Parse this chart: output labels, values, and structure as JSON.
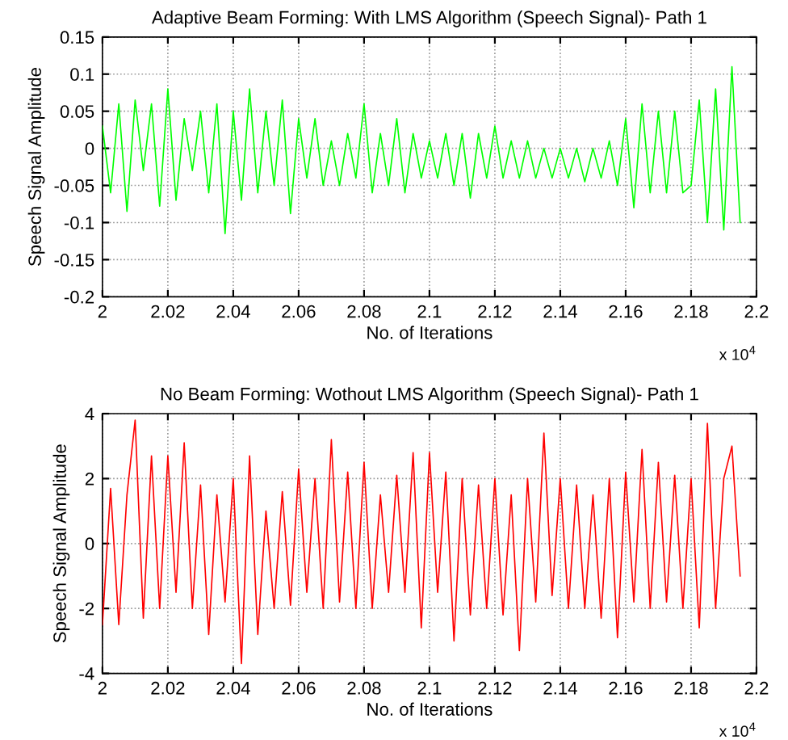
{
  "chart_data": [
    {
      "type": "line",
      "title": "Adaptive Beam Forming: With LMS Algorithm (Speech Signal)- Path 1",
      "xlabel": "No. of Iterations",
      "ylabel": "Speech Signal Amplitude",
      "annotations": [
        "x 10$^{4}$"
      ],
      "x": [
        2.0,
        2.0025,
        2.005,
        2.0075,
        2.01,
        2.0125,
        2.015,
        2.0175,
        2.02,
        2.0225,
        2.025,
        2.0275,
        2.03,
        2.0325,
        2.035,
        2.0375,
        2.04,
        2.0425,
        2.045,
        2.0475,
        2.05,
        2.0525,
        2.055,
        2.0575,
        2.06,
        2.0625,
        2.065,
        2.0675,
        2.07,
        2.0725,
        2.075,
        2.0775,
        2.08,
        2.0825,
        2.085,
        2.0875,
        2.09,
        2.0925,
        2.095,
        2.0975,
        2.1,
        2.1025,
        2.105,
        2.1075,
        2.11,
        2.1125,
        2.115,
        2.1175,
        2.12,
        2.1225,
        2.125,
        2.1275,
        2.13,
        2.1325,
        2.135,
        2.1375,
        2.14,
        2.1425,
        2.145,
        2.1475,
        2.15,
        2.1525,
        2.155,
        2.1575,
        2.16,
        2.1625,
        2.165,
        2.1675,
        2.17,
        2.1725,
        2.175,
        2.1775,
        2.18,
        2.1825,
        2.185,
        2.1875,
        2.19,
        2.1925,
        2.195
      ],
      "series": [
        {
          "color": "#00ff00",
          "values": [
            0.03,
            -0.06,
            0.06,
            -0.085,
            0.065,
            -0.03,
            0.06,
            -0.078,
            0.08,
            -0.07,
            0.04,
            -0.03,
            0.05,
            -0.06,
            0.06,
            -0.115,
            0.05,
            -0.07,
            0.08,
            -0.06,
            0.05,
            -0.05,
            0.065,
            -0.088,
            0.04,
            -0.04,
            0.04,
            -0.05,
            0.01,
            -0.05,
            0.02,
            -0.04,
            0.06,
            -0.06,
            0.02,
            -0.05,
            0.04,
            -0.06,
            0.02,
            -0.04,
            0.01,
            -0.04,
            0.02,
            -0.05,
            0.02,
            -0.067,
            0.02,
            -0.04,
            0.03,
            -0.04,
            0.01,
            -0.04,
            0.01,
            -0.04,
            0.0,
            -0.04,
            0.0,
            -0.04,
            0.0,
            -0.045,
            0.0,
            -0.04,
            0.01,
            -0.05,
            0.04,
            -0.08,
            0.06,
            -0.06,
            0.05,
            -0.06,
            0.05,
            -0.06,
            -0.05,
            0.065,
            -0.1,
            0.08,
            -0.11,
            0.11,
            -0.1
          ]
        }
      ],
      "xlim": [
        2,
        2.2
      ],
      "xticks": [
        2,
        2.02,
        2.04,
        2.06,
        2.08,
        2.1,
        2.12,
        2.14,
        2.16,
        2.18,
        2.2
      ],
      "ylim": [
        -0.2,
        0.15
      ],
      "yticks": [
        -0.2,
        -0.15,
        -0.1,
        -0.05,
        0,
        0.05,
        0.1,
        0.15
      ],
      "grid": true,
      "line_style": "solid"
    },
    {
      "type": "line",
      "title": "No Beam Forming: Wothout LMS Algorithm (Speech Signal)- Path 1",
      "xlabel": "No. of Iterations",
      "ylabel": "Speech Signal Amplitude",
      "annotations": [
        "x 10$^{4}$"
      ],
      "x": [
        2.0,
        2.0025,
        2.005,
        2.0075,
        2.01,
        2.0125,
        2.015,
        2.0175,
        2.02,
        2.0225,
        2.025,
        2.0275,
        2.03,
        2.0325,
        2.035,
        2.0375,
        2.04,
        2.0425,
        2.045,
        2.0475,
        2.05,
        2.0525,
        2.055,
        2.0575,
        2.06,
        2.0625,
        2.065,
        2.0675,
        2.07,
        2.0725,
        2.075,
        2.0775,
        2.08,
        2.0825,
        2.085,
        2.0875,
        2.09,
        2.0925,
        2.095,
        2.0975,
        2.1,
        2.1025,
        2.105,
        2.1075,
        2.11,
        2.1125,
        2.115,
        2.1175,
        2.12,
        2.1225,
        2.125,
        2.1275,
        2.13,
        2.1325,
        2.135,
        2.1375,
        2.14,
        2.1425,
        2.145,
        2.1475,
        2.15,
        2.1525,
        2.155,
        2.1575,
        2.16,
        2.1625,
        2.165,
        2.1675,
        2.17,
        2.1725,
        2.175,
        2.1775,
        2.18,
        2.1825,
        2.185,
        2.1875,
        2.19,
        2.1925,
        2.195
      ],
      "series": [
        {
          "color": "#ff0000",
          "values": [
            -2.5,
            1.7,
            -2.5,
            1.5,
            3.8,
            -2.3,
            2.7,
            -2.0,
            2.7,
            -1.5,
            3.1,
            -2.0,
            1.8,
            -2.8,
            1.5,
            -1.8,
            2.0,
            -3.7,
            2.7,
            -2.8,
            1.0,
            -2.0,
            1.6,
            -1.9,
            2.3,
            -1.5,
            2.0,
            -2.0,
            3.2,
            -1.8,
            2.2,
            -2.0,
            2.5,
            -2.0,
            1.5,
            -1.5,
            2.1,
            -1.5,
            2.8,
            -2.6,
            2.8,
            -1.5,
            2.2,
            -3.0,
            2.0,
            -2.2,
            1.8,
            -2.0,
            2.0,
            -2.2,
            1.5,
            -3.3,
            2.0,
            -1.8,
            3.4,
            -1.6,
            2.0,
            -2.0,
            1.8,
            -2.0,
            1.5,
            -2.3,
            2.0,
            -2.9,
            2.2,
            -1.8,
            2.9,
            -2.0,
            2.5,
            -1.8,
            2.1,
            -2.0,
            2.0,
            -2.6,
            3.7,
            -2.0,
            2.0,
            3.0,
            -1.0
          ]
        }
      ],
      "xlim": [
        2,
        2.2
      ],
      "xticks": [
        2,
        2.02,
        2.04,
        2.06,
        2.08,
        2.1,
        2.12,
        2.14,
        2.16,
        2.18,
        2.2
      ],
      "ylim": [
        -4,
        4
      ],
      "yticks": [
        -4,
        -2,
        0,
        2,
        4
      ],
      "grid": true,
      "line_style": "solid"
    }
  ]
}
